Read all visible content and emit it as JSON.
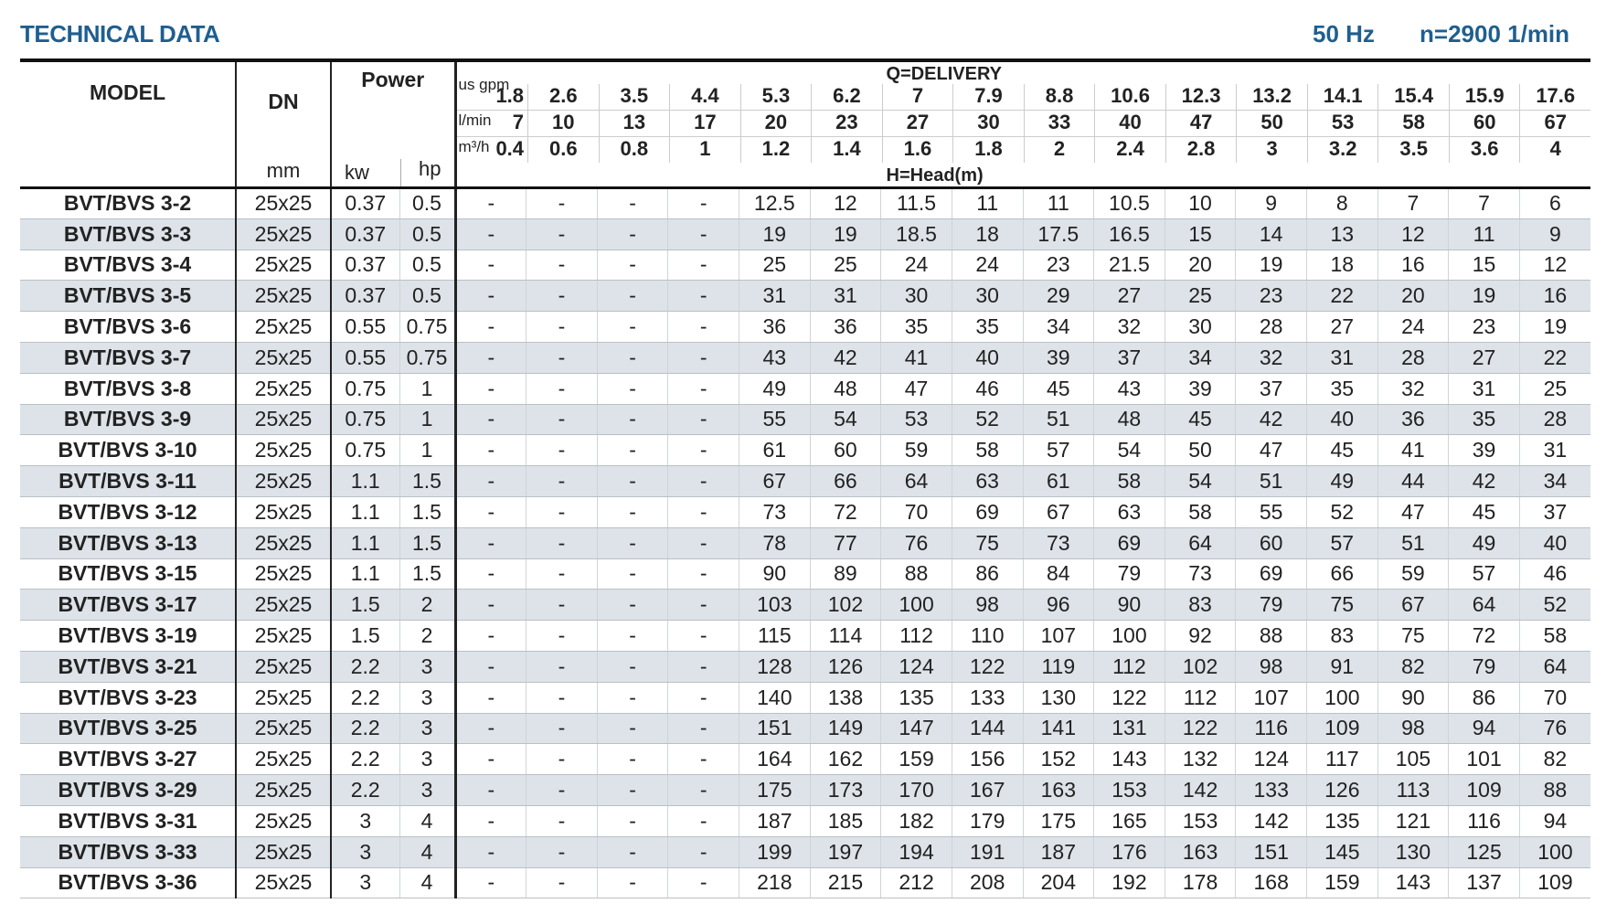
{
  "title": "TECHNICAL DATA",
  "frequency": "50 Hz",
  "speed": "n=2900 1/min",
  "colors": {
    "title": "#1f5f8f",
    "alt_row": "#dde3e8"
  },
  "header": {
    "model": "MODEL",
    "dn": "DN",
    "dn_unit": "mm",
    "power": "Power",
    "kw": "kw",
    "hp": "hp",
    "delivery": "Q=DELIVERY",
    "head": "H=Head(m)",
    "units": [
      "us gpm",
      "l/min",
      "m³/h"
    ],
    "gpm": [
      "1.8",
      "2.6",
      "3.5",
      "4.4",
      "5.3",
      "6.2",
      "7",
      "7.9",
      "8.8",
      "10.6",
      "12.3",
      "13.2",
      "14.1",
      "15.4",
      "15.9",
      "17.6"
    ],
    "lmin": [
      "7",
      "10",
      "13",
      "17",
      "20",
      "23",
      "27",
      "30",
      "33",
      "40",
      "47",
      "50",
      "53",
      "58",
      "60",
      "67"
    ],
    "m3h": [
      "0.4",
      "0.6",
      "0.8",
      "1",
      "1.2",
      "1.4",
      "1.6",
      "1.8",
      "2",
      "2.4",
      "2.8",
      "3",
      "3.2",
      "3.5",
      "3.6",
      "4"
    ]
  },
  "rows": [
    {
      "model": "BVT/BVS 3-2",
      "dn": "25x25",
      "kw": "0.37",
      "hp": "0.5",
      "heads": [
        "-",
        "-",
        "-",
        "-",
        "12.5",
        "12",
        "11.5",
        "11",
        "11",
        "10.5",
        "10",
        "9",
        "8",
        "7",
        "7",
        "6"
      ]
    },
    {
      "model": "BVT/BVS 3-3",
      "dn": "25x25",
      "kw": "0.37",
      "hp": "0.5",
      "heads": [
        "-",
        "-",
        "-",
        "-",
        "19",
        "19",
        "18.5",
        "18",
        "17.5",
        "16.5",
        "15",
        "14",
        "13",
        "12",
        "11",
        "9"
      ]
    },
    {
      "model": "BVT/BVS 3-4",
      "dn": "25x25",
      "kw": "0.37",
      "hp": "0.5",
      "heads": [
        "-",
        "-",
        "-",
        "-",
        "25",
        "25",
        "24",
        "24",
        "23",
        "21.5",
        "20",
        "19",
        "18",
        "16",
        "15",
        "12"
      ]
    },
    {
      "model": "BVT/BVS 3-5",
      "dn": "25x25",
      "kw": "0.37",
      "hp": "0.5",
      "heads": [
        "-",
        "-",
        "-",
        "-",
        "31",
        "31",
        "30",
        "30",
        "29",
        "27",
        "25",
        "23",
        "22",
        "20",
        "19",
        "16"
      ]
    },
    {
      "model": "BVT/BVS 3-6",
      "dn": "25x25",
      "kw": "0.55",
      "hp": "0.75",
      "heads": [
        "-",
        "-",
        "-",
        "-",
        "36",
        "36",
        "35",
        "35",
        "34",
        "32",
        "30",
        "28",
        "27",
        "24",
        "23",
        "19"
      ]
    },
    {
      "model": "BVT/BVS 3-7",
      "dn": "25x25",
      "kw": "0.55",
      "hp": "0.75",
      "heads": [
        "-",
        "-",
        "-",
        "-",
        "43",
        "42",
        "41",
        "40",
        "39",
        "37",
        "34",
        "32",
        "31",
        "28",
        "27",
        "22"
      ]
    },
    {
      "model": "BVT/BVS 3-8",
      "dn": "25x25",
      "kw": "0.75",
      "hp": "1",
      "heads": [
        "-",
        "-",
        "-",
        "-",
        "49",
        "48",
        "47",
        "46",
        "45",
        "43",
        "39",
        "37",
        "35",
        "32",
        "31",
        "25"
      ]
    },
    {
      "model": "BVT/BVS 3-9",
      "dn": "25x25",
      "kw": "0.75",
      "hp": "1",
      "heads": [
        "-",
        "-",
        "-",
        "-",
        "55",
        "54",
        "53",
        "52",
        "51",
        "48",
        "45",
        "42",
        "40",
        "36",
        "35",
        "28"
      ]
    },
    {
      "model": "BVT/BVS 3-10",
      "dn": "25x25",
      "kw": "0.75",
      "hp": "1",
      "heads": [
        "-",
        "-",
        "-",
        "-",
        "61",
        "60",
        "59",
        "58",
        "57",
        "54",
        "50",
        "47",
        "45",
        "41",
        "39",
        "31"
      ]
    },
    {
      "model": "BVT/BVS 3-11",
      "dn": "25x25",
      "kw": "1.1",
      "hp": "1.5",
      "heads": [
        "-",
        "-",
        "-",
        "-",
        "67",
        "66",
        "64",
        "63",
        "61",
        "58",
        "54",
        "51",
        "49",
        "44",
        "42",
        "34"
      ]
    },
    {
      "model": "BVT/BVS 3-12",
      "dn": "25x25",
      "kw": "1.1",
      "hp": "1.5",
      "heads": [
        "-",
        "-",
        "-",
        "-",
        "73",
        "72",
        "70",
        "69",
        "67",
        "63",
        "58",
        "55",
        "52",
        "47",
        "45",
        "37"
      ]
    },
    {
      "model": "BVT/BVS 3-13",
      "dn": "25x25",
      "kw": "1.1",
      "hp": "1.5",
      "heads": [
        "-",
        "-",
        "-",
        "-",
        "78",
        "77",
        "76",
        "75",
        "73",
        "69",
        "64",
        "60",
        "57",
        "51",
        "49",
        "40"
      ]
    },
    {
      "model": "BVT/BVS 3-15",
      "dn": "25x25",
      "kw": "1.1",
      "hp": "1.5",
      "heads": [
        "-",
        "-",
        "-",
        "-",
        "90",
        "89",
        "88",
        "86",
        "84",
        "79",
        "73",
        "69",
        "66",
        "59",
        "57",
        "46"
      ]
    },
    {
      "model": "BVT/BVS 3-17",
      "dn": "25x25",
      "kw": "1.5",
      "hp": "2",
      "heads": [
        "-",
        "-",
        "-",
        "-",
        "103",
        "102",
        "100",
        "98",
        "96",
        "90",
        "83",
        "79",
        "75",
        "67",
        "64",
        "52"
      ]
    },
    {
      "model": "BVT/BVS 3-19",
      "dn": "25x25",
      "kw": "1.5",
      "hp": "2",
      "heads": [
        "-",
        "-",
        "-",
        "-",
        "115",
        "114",
        "112",
        "110",
        "107",
        "100",
        "92",
        "88",
        "83",
        "75",
        "72",
        "58"
      ]
    },
    {
      "model": "BVT/BVS 3-21",
      "dn": "25x25",
      "kw": "2.2",
      "hp": "3",
      "heads": [
        "-",
        "-",
        "-",
        "-",
        "128",
        "126",
        "124",
        "122",
        "119",
        "112",
        "102",
        "98",
        "91",
        "82",
        "79",
        "64"
      ]
    },
    {
      "model": "BVT/BVS 3-23",
      "dn": "25x25",
      "kw": "2.2",
      "hp": "3",
      "heads": [
        "-",
        "-",
        "-",
        "-",
        "140",
        "138",
        "135",
        "133",
        "130",
        "122",
        "112",
        "107",
        "100",
        "90",
        "86",
        "70"
      ]
    },
    {
      "model": "BVT/BVS 3-25",
      "dn": "25x25",
      "kw": "2.2",
      "hp": "3",
      "heads": [
        "-",
        "-",
        "-",
        "-",
        "151",
        "149",
        "147",
        "144",
        "141",
        "131",
        "122",
        "116",
        "109",
        "98",
        "94",
        "76"
      ]
    },
    {
      "model": "BVT/BVS 3-27",
      "dn": "25x25",
      "kw": "2.2",
      "hp": "3",
      "heads": [
        "-",
        "-",
        "-",
        "-",
        "164",
        "162",
        "159",
        "156",
        "152",
        "143",
        "132",
        "124",
        "117",
        "105",
        "101",
        "82"
      ]
    },
    {
      "model": "BVT/BVS 3-29",
      "dn": "25x25",
      "kw": "2.2",
      "hp": "3",
      "heads": [
        "-",
        "-",
        "-",
        "-",
        "175",
        "173",
        "170",
        "167",
        "163",
        "153",
        "142",
        "133",
        "126",
        "113",
        "109",
        "88"
      ]
    },
    {
      "model": "BVT/BVS 3-31",
      "dn": "25x25",
      "kw": "3",
      "hp": "4",
      "heads": [
        "-",
        "-",
        "-",
        "-",
        "187",
        "185",
        "182",
        "179",
        "175",
        "165",
        "153",
        "142",
        "135",
        "121",
        "116",
        "94"
      ]
    },
    {
      "model": "BVT/BVS 3-33",
      "dn": "25x25",
      "kw": "3",
      "hp": "4",
      "heads": [
        "-",
        "-",
        "-",
        "-",
        "199",
        "197",
        "194",
        "191",
        "187",
        "176",
        "163",
        "151",
        "145",
        "130",
        "125",
        "100"
      ]
    },
    {
      "model": "BVT/BVS 3-36",
      "dn": "25x25",
      "kw": "3",
      "hp": "4",
      "heads": [
        "-",
        "-",
        "-",
        "-",
        "218",
        "215",
        "212",
        "208",
        "204",
        "192",
        "178",
        "168",
        "159",
        "143",
        "137",
        "109"
      ]
    }
  ]
}
